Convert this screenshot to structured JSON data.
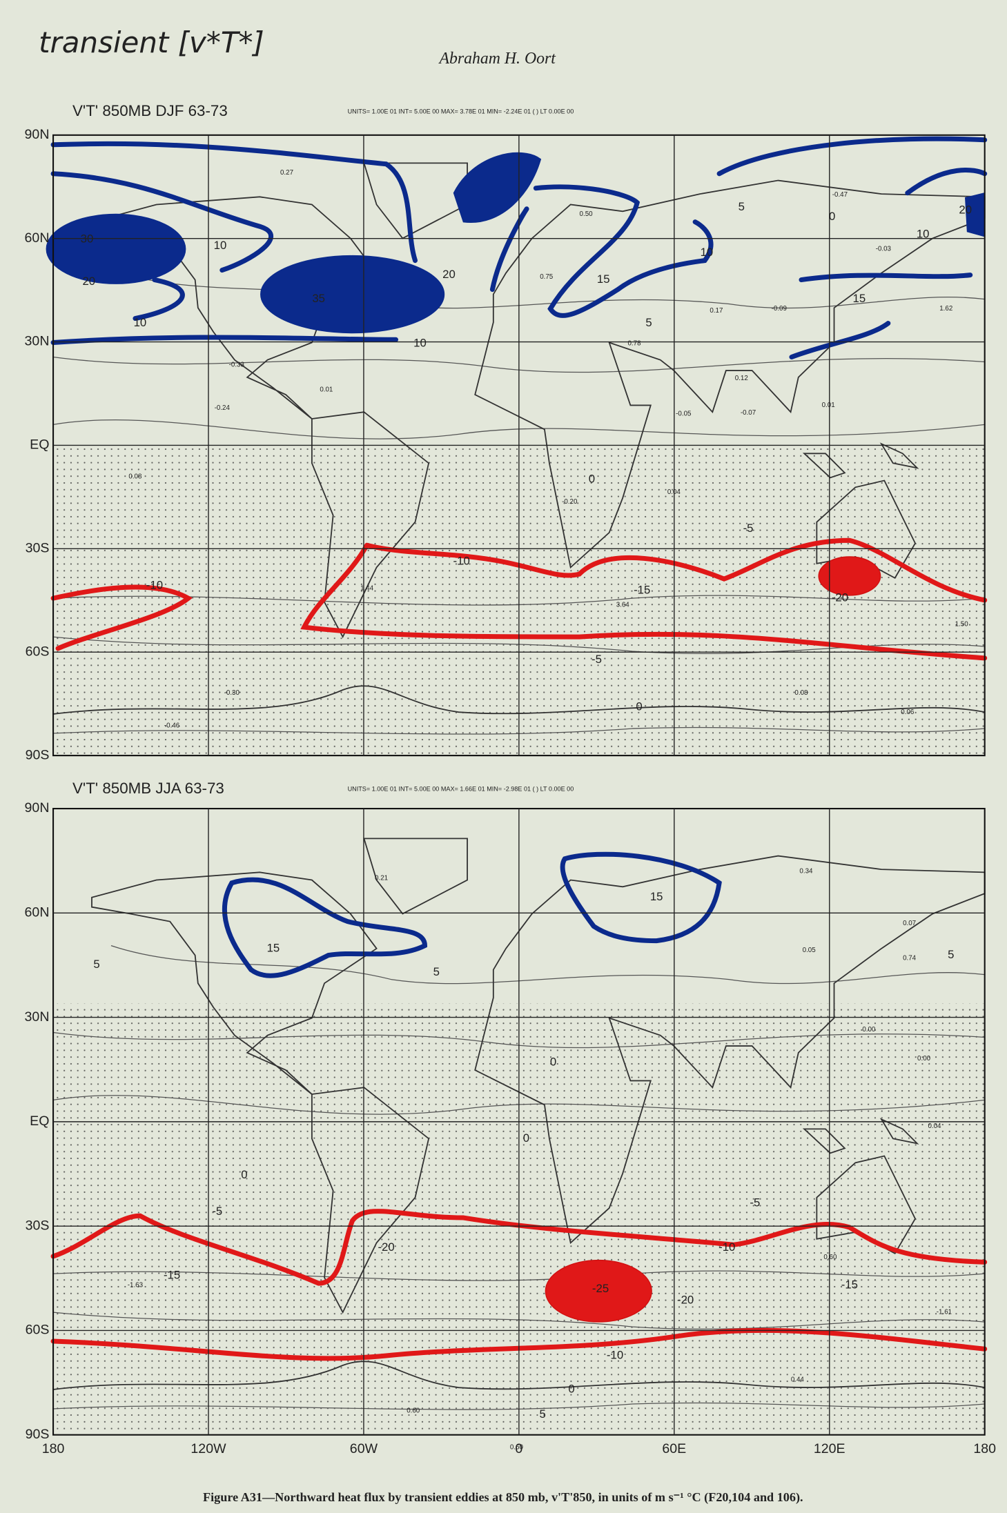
{
  "header": {
    "handwritten_title": "transient [v*T*]",
    "author": "Abraham H. Oort"
  },
  "axes": {
    "lat_labels": [
      "90N",
      "60N",
      "30N",
      "EQ",
      "30S",
      "60S",
      "90S"
    ],
    "lon_labels": [
      "180",
      "120W",
      "60W",
      "0",
      "60E",
      "120E",
      "180"
    ]
  },
  "panels": [
    {
      "title": "V'T'  850MB  DJF  63-73",
      "info": "UNITS= 1.00E 01    INT= 5.00E 00    MAX= 3.78E 01    MIN= -2.24E 01    ( ) LT 0.00E 00",
      "contour_labels": [
        "30",
        "20",
        "10",
        "10",
        "35",
        "20",
        "10",
        "0.27",
        "5",
        "0",
        "-0.47",
        "20",
        "10",
        "10",
        "15",
        "5",
        "15",
        "-15",
        "-10",
        "-10",
        "-5",
        "-20",
        "-5",
        "0",
        "0",
        "-0.30",
        "-0.46",
        "0.01",
        "-0.24",
        "-0.33",
        "0.08",
        "1.44",
        "1.50",
        "0.50",
        "0.75",
        "0.78",
        "-0.05",
        "-0.07",
        "0.12",
        "0.01",
        "-0.03",
        "0.17",
        "-0.09",
        "1.62",
        "0.08",
        "0.06",
        "0.04",
        "-0.20",
        "3.64"
      ]
    },
    {
      "title": "V'T'  850MB  JJA  63-73",
      "info": "UNITS= 1.00E 01    INT= 5.00E 00    MAX= 1.66E 01    MIN= -2.98E 01    ( ) LT 0.00E 00",
      "contour_labels": [
        "15",
        "15",
        "5",
        "5",
        "5",
        "0",
        "0",
        "0",
        "-5",
        "-5",
        "-15",
        "-15",
        "-20",
        "-25",
        "-20",
        "-10",
        "-10",
        "0",
        "5",
        "0.21",
        "0.34",
        "0.07",
        "0.74",
        "0.05",
        "0.00",
        "0.00",
        "0.04",
        "-1.63",
        "-1.61",
        "0.60",
        "0.44",
        "0.60",
        "0.60"
      ]
    }
  ],
  "caption": "Figure A31—Northward heat flux by transient eddies at 850 mb, v'T'850, in units of m s⁻¹ °C (F20,104 and 106)."
}
